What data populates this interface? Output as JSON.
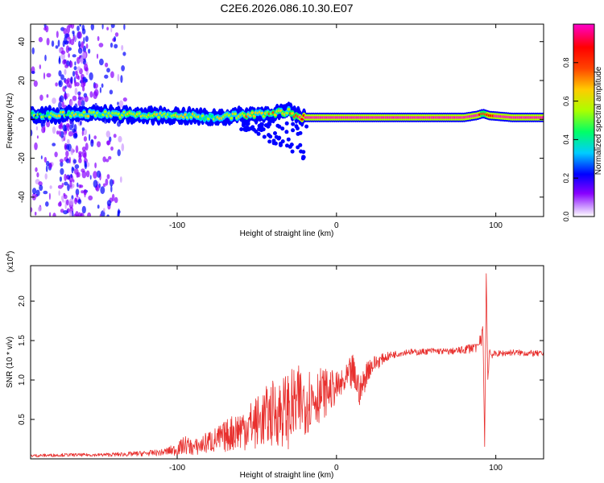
{
  "title": "C2E6.2026.086.10.30.E07",
  "chart_data": [
    {
      "type": "heatmap",
      "xlabel": "Height of straight line (km)",
      "ylabel": "Frequency (Hz)",
      "xlim": [
        -192,
        130
      ],
      "ylim": [
        -50,
        49
      ],
      "x_ticks": [
        -100,
        0,
        100
      ],
      "x_tick_labels": [
        "-100",
        "0",
        "100"
      ],
      "y_ticks": [
        -40,
        -20,
        0,
        20,
        40
      ],
      "y_tick_labels": [
        "-40",
        "-20",
        "0",
        "20",
        "40"
      ],
      "colorbar": {
        "label": "Normalized spectral amplitude",
        "range": [
          0,
          1
        ],
        "ticks": [
          0.0,
          0.2,
          0.4,
          0.6,
          0.8
        ],
        "tick_labels": [
          "0.0",
          "0.2",
          "0.4",
          "0.6",
          "0.8"
        ],
        "colormap": [
          "#ffffff",
          "#cc99ff",
          "#8800ff",
          "#0000ff",
          "#00ccff",
          "#00ff66",
          "#aaff00",
          "#ffcc00",
          "#ff4400",
          "#ff0000",
          "#ff00cc"
        ]
      },
      "band": {
        "x": [
          -192,
          -150,
          -120,
          -100,
          -80,
          -60,
          -40,
          -30,
          -25,
          -20,
          0,
          20,
          40,
          60,
          80,
          88,
          92,
          96,
          110,
          130
        ],
        "center_hz": [
          2,
          3,
          2,
          2,
          1,
          2,
          3,
          4,
          2,
          1,
          1,
          1,
          1,
          1,
          1,
          2,
          3,
          2,
          1,
          1
        ],
        "peak_amplitude": [
          0.5,
          0.55,
          0.6,
          0.55,
          0.55,
          0.6,
          0.65,
          0.7,
          0.75,
          0.9,
          0.95,
          1.0,
          1.0,
          1.0,
          1.0,
          0.95,
          0.7,
          0.85,
          1.0,
          1.0
        ]
      }
    },
    {
      "type": "line",
      "xlabel": "Height of straight line (km)",
      "ylabel": "SNR (10 * v/v)",
      "y_scale_label": "(x10",
      "y_scale_exp": "4",
      "y_scale_close": ")",
      "xlim": [
        -192,
        130
      ],
      "ylim": [
        0,
        2.45
      ],
      "x_ticks": [
        -100,
        0,
        100
      ],
      "x_tick_labels": [
        "-100",
        "0",
        "100"
      ],
      "y_ticks": [
        0.5,
        1.0,
        1.5,
        2.0
      ],
      "y_tick_labels": [
        "0.5",
        "1.0",
        "1.5",
        "2.0"
      ],
      "color": "#e8302e",
      "series": [
        {
          "name": "SNR",
          "x": [
            -192,
            -170,
            -150,
            -130,
            -110,
            -100,
            -95,
            -90,
            -85,
            -80,
            -75,
            -70,
            -65,
            -60,
            -55,
            -50,
            -45,
            -40,
            -35,
            -30,
            -25,
            -20,
            -15,
            -10,
            -5,
            0,
            5,
            10,
            15,
            20,
            25,
            30,
            35,
            40,
            45,
            50,
            60,
            70,
            80,
            85,
            90,
            92,
            93,
            94,
            95,
            96,
            97,
            100,
            110,
            120,
            130
          ],
          "y": [
            0.04,
            0.05,
            0.05,
            0.06,
            0.08,
            0.12,
            0.18,
            0.14,
            0.17,
            0.22,
            0.24,
            0.28,
            0.34,
            0.38,
            0.42,
            0.46,
            0.52,
            0.58,
            0.6,
            0.62,
            0.68,
            0.74,
            0.78,
            0.82,
            0.86,
            0.9,
            0.96,
            1.1,
            0.85,
            1.15,
            1.22,
            1.28,
            1.32,
            1.34,
            1.36,
            1.35,
            1.37,
            1.36,
            1.38,
            1.42,
            1.48,
            1.6,
            0.15,
            2.35,
            1.0,
            1.38,
            1.32,
            1.33,
            1.35,
            1.34,
            1.33
          ],
          "noise": [
            0.02,
            0.02,
            0.02,
            0.03,
            0.04,
            0.08,
            0.12,
            0.1,
            0.12,
            0.15,
            0.17,
            0.2,
            0.24,
            0.28,
            0.3,
            0.34,
            0.38,
            0.42,
            0.45,
            0.5,
            0.5,
            0.45,
            0.4,
            0.35,
            0.28,
            0.2,
            0.18,
            0.25,
            0.2,
            0.15,
            0.1,
            0.06,
            0.05,
            0.04,
            0.04,
            0.04,
            0.04,
            0.04,
            0.05,
            0.08,
            0.12,
            0.1,
            0.05,
            0.05,
            0.1,
            0.06,
            0.05,
            0.04,
            0.04,
            0.04,
            0.04
          ]
        }
      ]
    }
  ]
}
